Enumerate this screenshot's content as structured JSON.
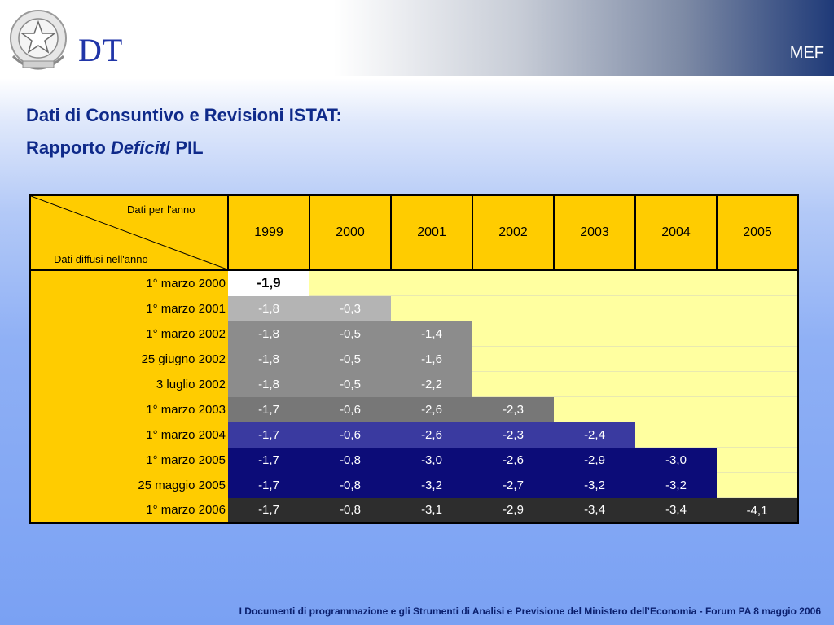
{
  "header": {
    "logo_text": "DT",
    "org_text": "MEF"
  },
  "title": {
    "line1": "Dati di Consuntivo e Revisioni ISTAT:",
    "line2_prefix": "Rapporto ",
    "line2_em": "Deficit",
    "line2_suffix": "/ PIL"
  },
  "table": {
    "corner_top": "Dati per l'anno",
    "corner_bottom": "Dati diffusi nell'anno",
    "years": [
      "1999",
      "2000",
      "2001",
      "2002",
      "2003",
      "2004",
      "2005"
    ],
    "rows": [
      {
        "label": "1° marzo 2000",
        "values": [
          "-1,9"
        ]
      },
      {
        "label": "1° marzo 2001",
        "values": [
          "-1,8",
          "-0,3"
        ]
      },
      {
        "label": "1° marzo 2002",
        "values": [
          "-1,8",
          "-0,5",
          "-1,4"
        ]
      },
      {
        "label": "25 giugno 2002",
        "values": [
          "-1,8",
          "-0,5",
          "-1,6"
        ]
      },
      {
        "label": "3 luglio 2002",
        "values": [
          "-1,8",
          "-0,5",
          "-2,2"
        ]
      },
      {
        "label": "1° marzo 2003",
        "values": [
          "-1,7",
          "-0,6",
          "-2,6",
          "-2,3"
        ]
      },
      {
        "label": "1° marzo 2004",
        "values": [
          "-1,7",
          "-0,6",
          "-2,6",
          "-2,3",
          "-2,4"
        ]
      },
      {
        "label": "1° marzo 2005",
        "values": [
          "-1,7",
          "-0,8",
          "-3,0",
          "-2,6",
          "-2,9",
          "-3,0"
        ]
      },
      {
        "label": "25 maggio 2005",
        "values": [
          "-1,7",
          "-0,8",
          "-3,2",
          "-2,7",
          "-3,2",
          "-3,2"
        ]
      },
      {
        "label": "1° marzo 2006",
        "values": [
          "-1,7",
          "-0,8",
          "-3,1",
          "-2,9",
          "-3,4",
          "-3,4",
          "-4,1"
        ]
      }
    ]
  },
  "footer": {
    "text": "I Documenti di programmazione e gli Strumenti di Analisi e Previsione del  Ministero dell’Economia - Forum PA  8 maggio 2006"
  }
}
